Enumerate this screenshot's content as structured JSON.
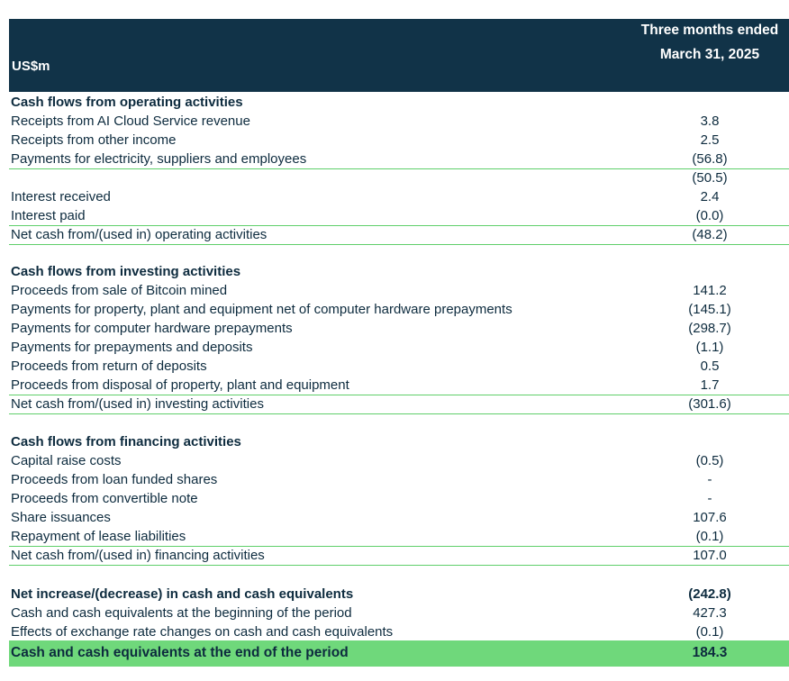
{
  "header": {
    "unit_label": "US$m",
    "period_line1": "Three months ended",
    "period_line2": "March 31, 2025"
  },
  "statement": {
    "r0": {
      "label": "Cash flows from operating activities",
      "value": ""
    },
    "r1": {
      "label": "Receipts from AI Cloud Service revenue",
      "value": "3.8"
    },
    "r2": {
      "label": "Receipts from other income",
      "value": "2.5"
    },
    "r3": {
      "label": "Payments for electricity, suppliers and employees",
      "value": "(56.8)"
    },
    "r4": {
      "label": "",
      "value": "(50.5)"
    },
    "r5": {
      "label": "Interest received",
      "value": "2.4"
    },
    "r6": {
      "label": "Interest paid",
      "value": "(0.0)"
    },
    "r7": {
      "label": "Net cash from/(used in) operating activities",
      "value": "(48.2)"
    },
    "r8": {
      "label": "Cash flows from investing activities",
      "value": ""
    },
    "r9": {
      "label": "Proceeds from sale of Bitcoin mined",
      "value": "141.2"
    },
    "r10": {
      "label": "Payments for property, plant and equipment net of computer hardware prepayments",
      "value": "(145.1)"
    },
    "r11": {
      "label": "Payments for computer hardware prepayments",
      "value": "(298.7)"
    },
    "r12": {
      "label": "Payments for prepayments and deposits",
      "value": "(1.1)"
    },
    "r13": {
      "label": "Proceeds from return of deposits",
      "value": "0.5"
    },
    "r14": {
      "label": "Proceeds from disposal of property, plant and equipment",
      "value": "1.7"
    },
    "r15": {
      "label": "Net cash from/(used in) investing activities",
      "value": "(301.6)"
    },
    "r16": {
      "label": "Cash flows from financing activities",
      "value": ""
    },
    "r17": {
      "label": "Capital raise costs",
      "value": "(0.5)"
    },
    "r18": {
      "label": "Proceeds from loan funded shares",
      "value": "-"
    },
    "r19": {
      "label": "Proceeds from convertible note",
      "value": "-"
    },
    "r20": {
      "label": "Share issuances",
      "value": "107.6"
    },
    "r21": {
      "label": "Repayment of lease liabilities",
      "value": "(0.1)"
    },
    "r22": {
      "label": "Net cash from/(used in) financing activities",
      "value": "107.0"
    },
    "r23": {
      "label": "Net increase/(decrease) in cash and cash equivalents",
      "value": "(242.8)"
    },
    "r24": {
      "label": "Cash and cash equivalents at the beginning of the period",
      "value": "427.3"
    },
    "r25": {
      "label": "Effects of exchange rate changes on cash and cash equivalents",
      "value": "(0.1)"
    },
    "r26": {
      "label": "Cash and cash equivalents at the end of the period",
      "value": "184.3"
    }
  },
  "colors": {
    "header_bg": "#113348",
    "rule_green": "#5fcf6a",
    "total_highlight": "#6fd87b",
    "text": "#0d2b3e"
  }
}
